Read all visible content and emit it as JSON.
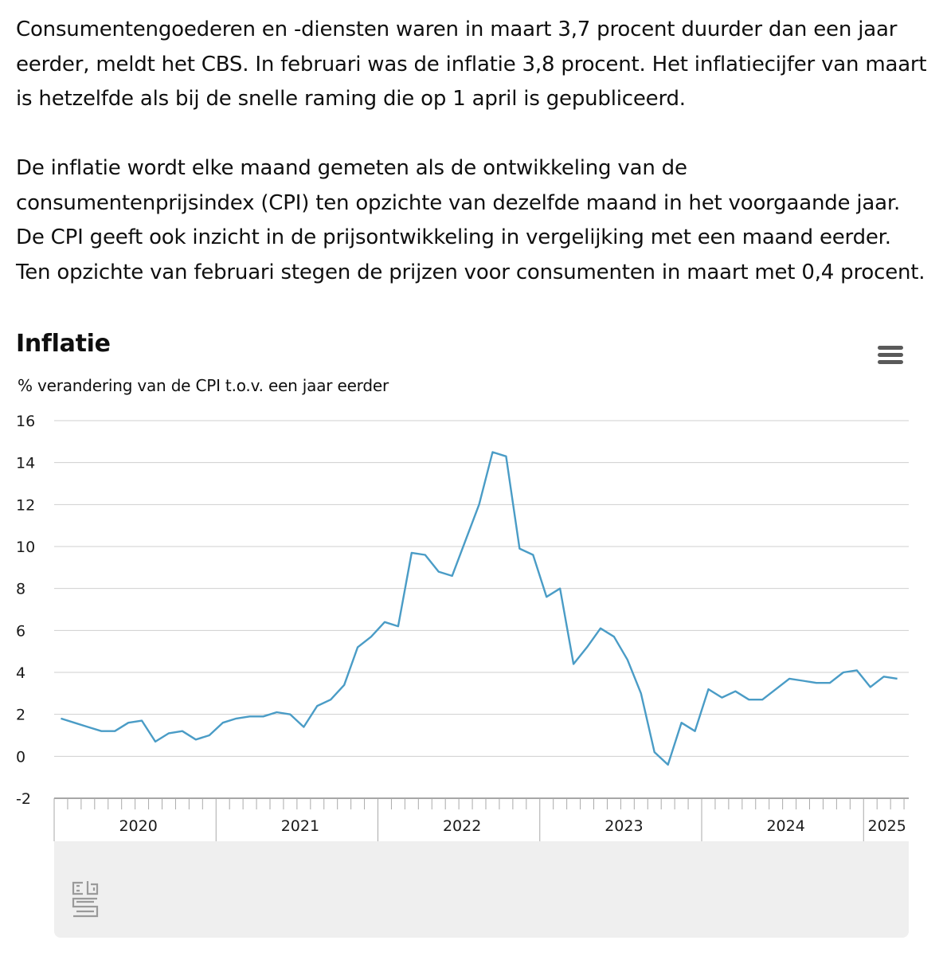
{
  "article": {
    "paragraph1": "Consumentengoederen en -diensten waren in maart 3,7 procent duurder dan een jaar eerder, meldt het CBS. In februari was de inflatie 3,8 procent. Het inflatiecijfer van maart is hetzelfde als bij de snelle raming die op 1 april is gepubliceerd.",
    "paragraph2": "De inflatie wordt elke maand gemeten als de ontwikkeling van de consumentenprijsindex (CPI) ten opzichte van dezelfde maand in het voorgaande jaar. De CPI geeft ook inzicht in de prijsontwikkeling in vergelijking met een maand eerder. Ten opzichte van februari stegen de prijzen voor consumenten in maart met 0,4 procent."
  },
  "chart_data": {
    "type": "line",
    "title": "Inflatie",
    "subtitle": "% verandering van de CPI t.o.v. een jaar eerder",
    "xlabel": "",
    "ylabel": "",
    "ylim": [
      -2,
      16
    ],
    "y_ticks": [
      "-2",
      "0",
      "2",
      "4",
      "6",
      "8",
      "10",
      "12",
      "14",
      "16"
    ],
    "x_start": "2020-01",
    "x_end": "2025-03",
    "x_tick_labels": [
      "2020",
      "2021",
      "2022",
      "2023",
      "2024",
      "2025"
    ],
    "grid": true,
    "line_color": "#4a9cc6",
    "series": [
      {
        "name": "",
        "x": [
          "2020-01",
          "2020-02",
          "2020-03",
          "2020-04",
          "2020-05",
          "2020-06",
          "2020-07",
          "2020-08",
          "2020-09",
          "2020-10",
          "2020-11",
          "2020-12",
          "2021-01",
          "2021-02",
          "2021-03",
          "2021-04",
          "2021-05",
          "2021-06",
          "2021-07",
          "2021-08",
          "2021-09",
          "2021-10",
          "2021-11",
          "2021-12",
          "2022-01",
          "2022-02",
          "2022-03",
          "2022-04",
          "2022-05",
          "2022-06",
          "2022-07",
          "2022-08",
          "2022-09",
          "2022-10",
          "2022-11",
          "2022-12",
          "2023-01",
          "2023-02",
          "2023-03",
          "2023-04",
          "2023-05",
          "2023-06",
          "2023-07",
          "2023-08",
          "2023-09",
          "2023-10",
          "2023-11",
          "2023-12",
          "2024-01",
          "2024-02",
          "2024-03",
          "2024-04",
          "2024-05",
          "2024-06",
          "2024-07",
          "2024-08",
          "2024-09",
          "2024-10",
          "2024-11",
          "2024-12",
          "2025-01",
          "2025-02",
          "2025-03"
        ],
        "values": [
          1.8,
          1.6,
          1.4,
          1.2,
          1.2,
          1.6,
          1.7,
          0.7,
          1.1,
          1.2,
          0.8,
          1.0,
          1.6,
          1.8,
          1.9,
          1.9,
          2.1,
          2.0,
          1.4,
          2.4,
          2.7,
          3.4,
          5.2,
          5.7,
          6.4,
          6.2,
          9.7,
          9.6,
          8.8,
          8.6,
          10.3,
          12.0,
          14.5,
          14.3,
          9.9,
          9.6,
          7.6,
          8.0,
          4.4,
          5.2,
          6.1,
          5.7,
          4.6,
          3.0,
          0.2,
          -0.4,
          1.6,
          1.2,
          3.2,
          2.8,
          3.1,
          2.7,
          2.7,
          3.2,
          3.7,
          3.6,
          3.5,
          3.5,
          4.0,
          4.1,
          3.3,
          3.8,
          3.7
        ]
      }
    ]
  },
  "icons": {
    "menu": "hamburger-menu-icon",
    "logo": "cbs-logo-icon"
  }
}
